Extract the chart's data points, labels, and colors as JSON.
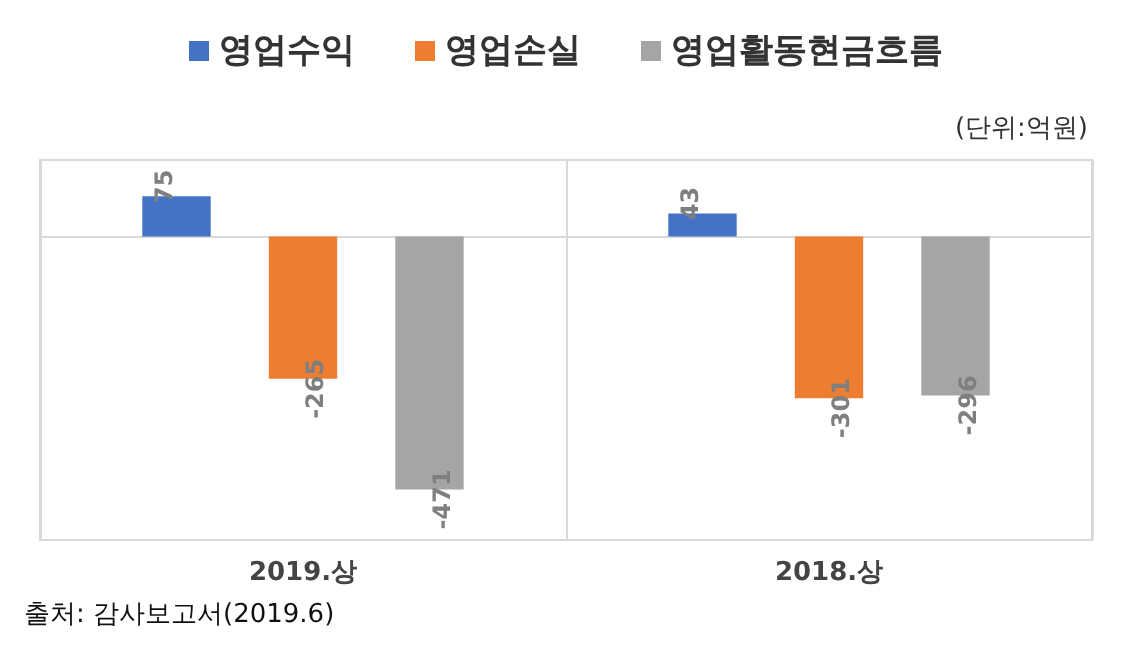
{
  "chart_data": {
    "type": "bar",
    "categories": [
      "2019.상",
      "2018.상"
    ],
    "series": [
      {
        "name": "영업수익",
        "color": "#4472c4",
        "values": [
          75,
          43
        ]
      },
      {
        "name": "영업손실",
        "color": "#ed7d31",
        "values": [
          -265,
          -301
        ]
      },
      {
        "name": "영업활동현금흐름",
        "color": "#a5a5a5",
        "values": [
          -471,
          -296
        ]
      }
    ],
    "data_labels": true,
    "legend": "top",
    "grid": "x",
    "annotations": [
      "(단위:억원)",
      "출처: 감사보고서(2019.6)"
    ]
  }
}
